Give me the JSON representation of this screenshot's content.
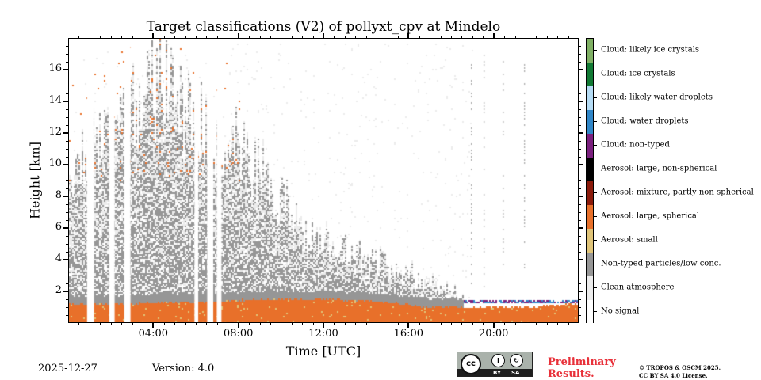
{
  "chart_data": {
    "type": "heatmap",
    "title": "Target classifications (V2) of pollyxt_cpv at Mindelo",
    "xlabel": "Time [UTC]",
    "ylabel": "Height [km]",
    "x_unit": "hours UTC",
    "xlim": [
      0,
      24
    ],
    "ylim": [
      0,
      18
    ],
    "xticks": [
      4,
      8,
      12,
      16,
      20
    ],
    "xtick_labels": [
      "04:00",
      "08:00",
      "12:00",
      "16:00",
      "20:00"
    ],
    "yticks": [
      2,
      4,
      6,
      8,
      10,
      12,
      14,
      16
    ],
    "ytick_labels": [
      "2",
      "4",
      "6",
      "8",
      "10",
      "12",
      "14",
      "16"
    ],
    "classes": [
      {
        "id": 0,
        "label": "No signal",
        "color": "#ffffff"
      },
      {
        "id": 1,
        "label": "Clean atmosphere",
        "color": "#ececec"
      },
      {
        "id": 2,
        "label": "Non-typed particles/low conc.",
        "color": "#969696"
      },
      {
        "id": 3,
        "label": "Aerosol: small",
        "color": "#e0c478"
      },
      {
        "id": 4,
        "label": "Aerosol: large, spherical",
        "color": "#e8702a"
      },
      {
        "id": 5,
        "label": "Aerosol: mixture, partly non-spherical",
        "color": "#8b1a0a"
      },
      {
        "id": 6,
        "label": "Aerosol: large, non-spherical",
        "color": "#000000"
      },
      {
        "id": 7,
        "label": "Cloud: non-typed",
        "color": "#7a1f7e"
      },
      {
        "id": 8,
        "label": "Cloud: water droplets",
        "color": "#2f86c8"
      },
      {
        "id": 9,
        "label": "Cloud: likely water droplets",
        "color": "#b5dcf5"
      },
      {
        "id": 10,
        "label": "Cloud: ice crystals",
        "color": "#117a34"
      },
      {
        "id": 11,
        "label": "Cloud: likely ice crystals",
        "color": "#7fb064"
      }
    ],
    "layers": {
      "aerosol_large_spherical": {
        "start": 0,
        "end": 24,
        "top_km": [
          1.3,
          1.3,
          1.4,
          1.5,
          1.6,
          1.6,
          1.5,
          1.1,
          1.1,
          1.1,
          1.3
        ]
      },
      "non_typed_particles": {
        "start": 0,
        "end": 18.5,
        "top_km": [
          11,
          12,
          16,
          14,
          12,
          10,
          6,
          5,
          4,
          3,
          2
        ]
      },
      "cloud_non_typed_band": {
        "start": 18.5,
        "end": 24,
        "height_km": [
          1.3,
          1.6
        ]
      }
    },
    "no_signal_gaps_hours": [
      0.85,
      1.9,
      2.6,
      5.9,
      6.5,
      6.95
    ]
  },
  "footer": {
    "date": "2025-12-27",
    "version": "Version: 4.0",
    "preliminary": "Preliminary Results.",
    "copyright": [
      "© TROPOS & OSCM 2025.",
      "CC BY SA 4.0 License."
    ],
    "license_badge": {
      "cc": "cc",
      "by": "BY",
      "sa": "SA"
    }
  }
}
